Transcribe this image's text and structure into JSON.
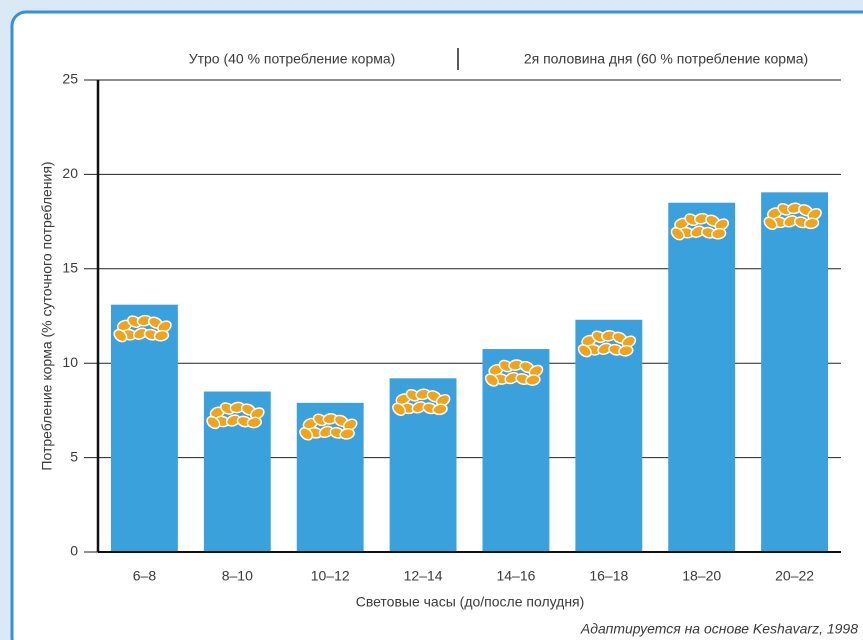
{
  "chart_data": {
    "type": "bar",
    "header_left": "Утро (40 % потребление корма)",
    "header_right": "2я половина дня (60 % потребление корма)",
    "ylabel": "Потребление корма (% суточного потребления)",
    "xlabel": "Световые часы (до/после полудня)",
    "source": "Адаптируется на основе  Keshavarz, 1998",
    "categories": [
      "6–8",
      "8–10",
      "10–12",
      "12–14",
      "14–16",
      "16–18",
      "18–20",
      "20–22"
    ],
    "values": [
      13.1,
      8.5,
      7.9,
      9.2,
      10.75,
      12.3,
      18.5,
      19.05
    ],
    "color": "#3ba1dd",
    "ylim": [
      0,
      25
    ],
    "yticks": [
      0,
      5,
      10,
      15,
      20,
      25
    ],
    "grid": true
  }
}
